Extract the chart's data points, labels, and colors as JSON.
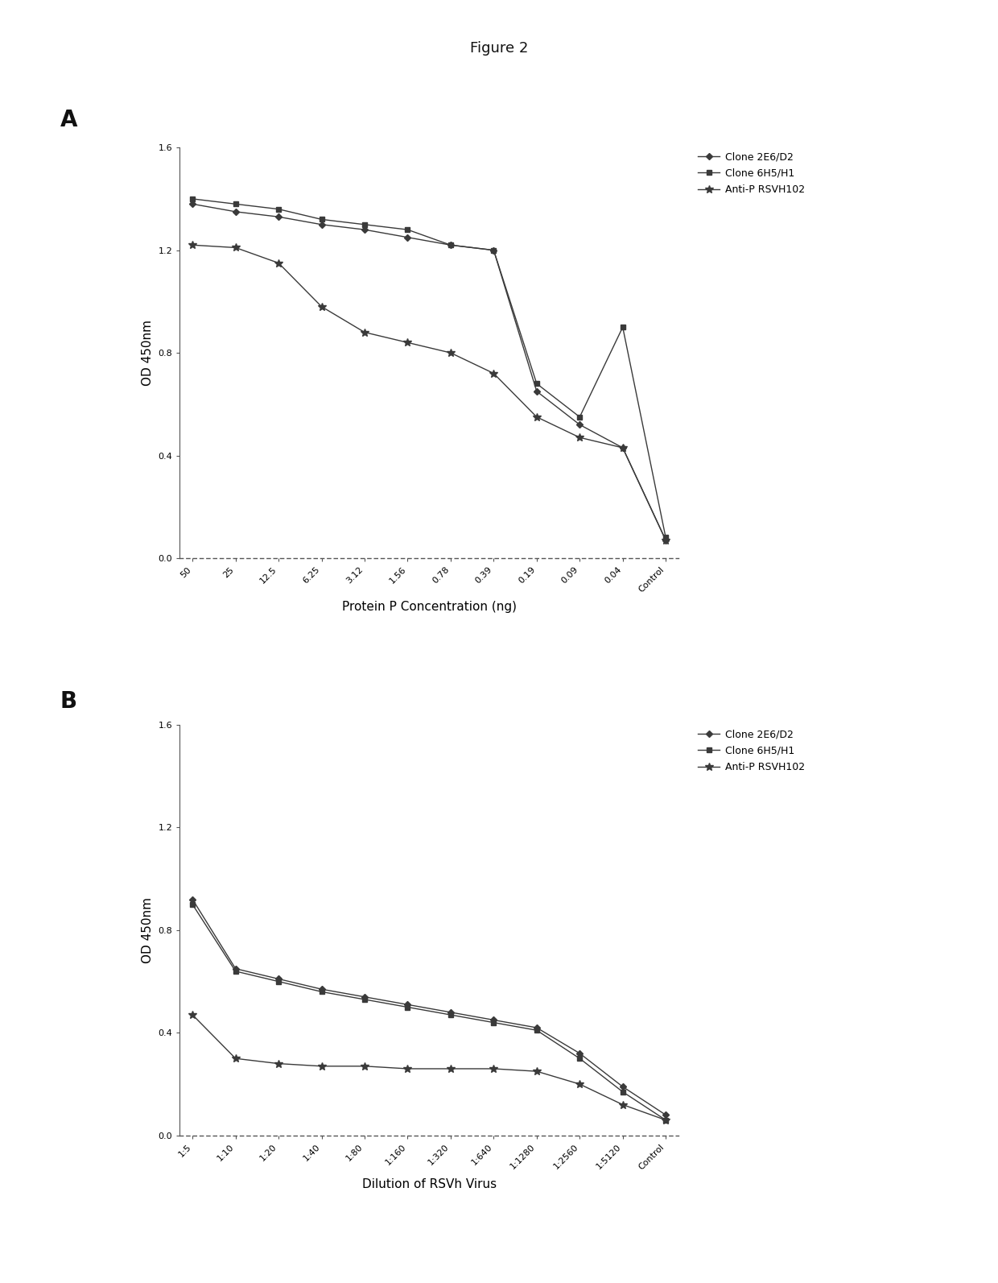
{
  "figure_title": "Figure 2",
  "panel_A": {
    "label": "A",
    "xlabel": "Protein P Concentration (ng)",
    "ylabel": "OD 450nm",
    "ylim": [
      0.0,
      1.6
    ],
    "yticks": [
      0.0,
      0.4,
      0.8,
      1.2,
      1.6
    ],
    "ytick_labels": [
      "0.0",
      "0.4",
      "0.8",
      "1.2",
      "1.6"
    ],
    "xtick_labels": [
      "50",
      "25",
      "12.5",
      "6.25",
      "3.12",
      "1.56",
      "0.78",
      "0.39",
      "0.19",
      "0.09",
      "0.04",
      "Control"
    ],
    "Clone_2E6_D2": [
      1.38,
      1.35,
      1.33,
      1.3,
      1.28,
      1.25,
      1.22,
      1.2,
      0.65,
      0.52,
      0.43,
      0.07
    ],
    "Clone_6H5_H1": [
      1.4,
      1.38,
      1.36,
      1.32,
      1.3,
      1.28,
      1.22,
      1.2,
      0.68,
      0.55,
      0.9,
      0.08
    ],
    "Anti_P_RSVH102": [
      1.22,
      1.21,
      1.15,
      0.98,
      0.88,
      0.84,
      0.8,
      0.72,
      0.55,
      0.47,
      0.43,
      0.07
    ]
  },
  "panel_B": {
    "label": "B",
    "xlabel": "Dilution of RSVh Virus",
    "ylabel": "OD 450nm",
    "ylim": [
      0.0,
      1.6
    ],
    "yticks": [
      0.0,
      0.4,
      0.8,
      1.2,
      1.6
    ],
    "ytick_labels": [
      "0.0",
      "0.4",
      "0.8",
      "1.2",
      "1.6"
    ],
    "xtick_labels": [
      "1:5",
      "1:10",
      "1:20",
      "1:40",
      "1:80",
      "1:160",
      "1:320",
      "1:640",
      "1:1280",
      "1:2560",
      "1:5120",
      "Control"
    ],
    "Clone_2E6_D2": [
      0.92,
      0.65,
      0.61,
      0.57,
      0.54,
      0.51,
      0.48,
      0.45,
      0.42,
      0.32,
      0.19,
      0.08
    ],
    "Clone_6H5_H1": [
      0.9,
      0.64,
      0.6,
      0.56,
      0.53,
      0.5,
      0.47,
      0.44,
      0.41,
      0.3,
      0.17,
      0.06
    ],
    "Anti_P_RSVH102": [
      0.47,
      0.3,
      0.28,
      0.27,
      0.27,
      0.26,
      0.26,
      0.26,
      0.25,
      0.2,
      0.12,
      0.06
    ]
  },
  "series_keys": [
    "Clone_2E6_D2",
    "Clone_6H5_H1",
    "Anti_P_RSVH102"
  ],
  "legend_labels": [
    "Clone 2E6/D2",
    "Clone 6H5/H1",
    "Anti-P RSVH102"
  ],
  "line_color": "#3a3a3a",
  "markers": [
    "D",
    "s",
    "*"
  ],
  "markersizes": [
    4,
    4,
    7
  ],
  "bg_color": "#ffffff",
  "text_color": "#111111",
  "fig_title_fontsize": 13,
  "axis_label_fontsize": 11,
  "tick_fontsize": 8,
  "legend_fontsize": 9
}
